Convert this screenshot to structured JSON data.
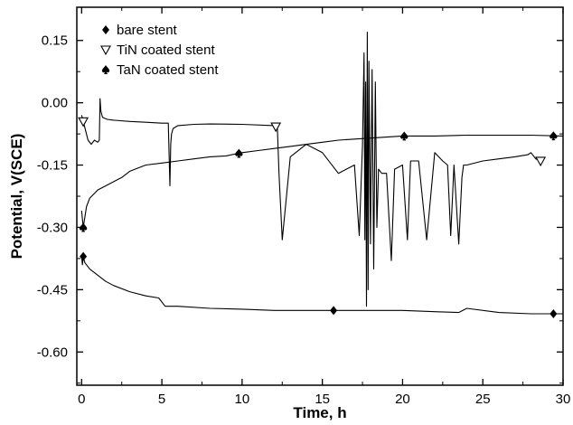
{
  "chart_data": {
    "type": "line",
    "title": "",
    "xlabel": "Time, h",
    "ylabel": "Potential, V(SCE)",
    "xlim": [
      -0.3,
      30
    ],
    "ylim": [
      -0.68,
      0.23
    ],
    "x_ticks": [
      0,
      5,
      10,
      15,
      20,
      25,
      30
    ],
    "x_tick_labels": [
      "0",
      "5",
      "10",
      "15",
      "20",
      "25",
      "30"
    ],
    "y_ticks": [
      0.15,
      0.0,
      -0.15,
      -0.3,
      -0.45,
      -0.6
    ],
    "y_tick_labels": [
      "0.15",
      "0.00",
      "-0.15",
      "-0.30",
      "-0.45",
      "-0.60"
    ],
    "legend_position": "top-left",
    "grid": false,
    "series": [
      {
        "name": "bare stent",
        "marker": "diamond",
        "marker_x": [
          0.1,
          15.7,
          29.4
        ],
        "x": [
          0,
          0.05,
          0.1,
          0.2,
          0.3,
          0.5,
          1,
          1.5,
          2,
          3,
          4,
          4.8,
          5.2,
          6,
          8,
          10,
          12,
          15,
          18,
          20,
          22,
          23.5,
          24,
          26,
          28,
          30
        ],
        "y": [
          -0.37,
          -0.39,
          -0.37,
          -0.385,
          -0.39,
          -0.4,
          -0.415,
          -0.43,
          -0.44,
          -0.455,
          -0.465,
          -0.47,
          -0.49,
          -0.49,
          -0.495,
          -0.497,
          -0.5,
          -0.5,
          -0.5,
          -0.5,
          -0.503,
          -0.505,
          -0.495,
          -0.505,
          -0.508,
          -0.508
        ]
      },
      {
        "name": "TiN coated stent",
        "marker": "triangle-down",
        "marker_x": [
          0.1,
          12.1,
          28.6
        ],
        "x": [
          0,
          0.2,
          0.4,
          0.6,
          0.8,
          1.0,
          1.1,
          1.15,
          1.2,
          1.3,
          1.6,
          2,
          3,
          4,
          5,
          5.4,
          5.5,
          5.55,
          5.6,
          5.7,
          6,
          7,
          8,
          10,
          12,
          12.2,
          12.3,
          12.5,
          13,
          14,
          15,
          16,
          17,
          17.3,
          17.5,
          17.6,
          17.65,
          17.7,
          17.75,
          17.8,
          17.85,
          17.9,
          18,
          18.1,
          18.2,
          18.3,
          18.4,
          18.5,
          18.7,
          19,
          19.3,
          19.5,
          20,
          20.3,
          20.5,
          21,
          21.5,
          22,
          22.5,
          22.8,
          23,
          23.2,
          23.5,
          23.7,
          23.8,
          24,
          25,
          26,
          27,
          27.8,
          28,
          28.3,
          28.6
        ],
        "y": [
          -0.03,
          -0.06,
          -0.09,
          -0.1,
          -0.09,
          -0.095,
          -0.09,
          0.01,
          -0.02,
          -0.035,
          -0.04,
          -0.042,
          -0.045,
          -0.047,
          -0.049,
          -0.049,
          -0.2,
          -0.1,
          -0.075,
          -0.062,
          -0.055,
          -0.052,
          -0.051,
          -0.052,
          -0.055,
          -0.06,
          -0.17,
          -0.33,
          -0.13,
          -0.1,
          -0.12,
          -0.17,
          -0.15,
          -0.32,
          -0.1,
          0.12,
          -0.33,
          0.05,
          -0.49,
          0.17,
          -0.45,
          0.1,
          -0.34,
          0.08,
          -0.4,
          0.05,
          -0.3,
          -0.16,
          -0.17,
          -0.17,
          -0.38,
          -0.16,
          -0.15,
          -0.33,
          -0.14,
          -0.14,
          -0.33,
          -0.12,
          -0.14,
          -0.15,
          -0.32,
          -0.15,
          -0.34,
          -0.18,
          -0.15,
          -0.15,
          -0.14,
          -0.135,
          -0.13,
          -0.125,
          -0.12,
          -0.135,
          -0.14
        ]
      },
      {
        "name": "TaN coated stent",
        "marker": "spade",
        "marker_x": [
          0.1,
          9.8,
          20.1,
          29.4
        ],
        "x": [
          0,
          0.1,
          0.3,
          0.5,
          1,
          1.5,
          2,
          2.5,
          3,
          4,
          5,
          6,
          7,
          8,
          9,
          10,
          11,
          12,
          13,
          14,
          15,
          16,
          18,
          20,
          22,
          24,
          26,
          28,
          30
        ],
        "y": [
          -0.26,
          -0.3,
          -0.25,
          -0.23,
          -0.21,
          -0.2,
          -0.19,
          -0.18,
          -0.165,
          -0.15,
          -0.145,
          -0.14,
          -0.135,
          -0.13,
          -0.128,
          -0.12,
          -0.115,
          -0.11,
          -0.105,
          -0.1,
          -0.095,
          -0.09,
          -0.085,
          -0.08,
          -0.08,
          -0.078,
          -0.078,
          -0.078,
          -0.08
        ]
      }
    ]
  }
}
